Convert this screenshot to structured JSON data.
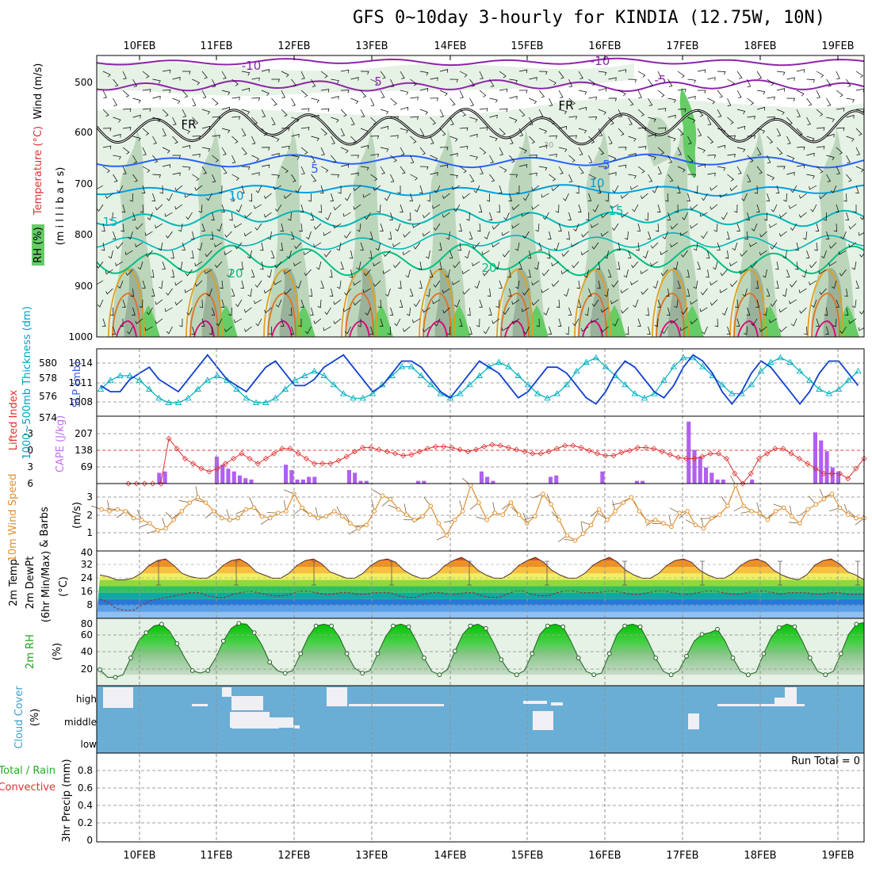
{
  "title": "GFS 0~10day 3-hourly for KINDIA (12.75W, 10N)",
  "dates": [
    "10FEB",
    "11FEB",
    "12FEB",
    "13FEB",
    "14FEB",
    "15FEB",
    "16FEB",
    "17FEB",
    "18FEB",
    "19FEB"
  ],
  "panels": {
    "upper": {
      "ylabel_rh": "RH (%)",
      "ylabel_temp": "Temperature (°C)",
      "ylabel_wind": "Wind (m/s)",
      "ylabel_units": "(m i l l i b a r s)",
      "yticks": [
        "500",
        "600",
        "700",
        "800",
        "900",
        "1000"
      ],
      "contour_labels": [
        "-10",
        "-10",
        "5",
        "-5",
        "FR",
        "FR",
        "5",
        "5",
        "10",
        "10",
        "15",
        "15",
        "20",
        "20",
        "30"
      ],
      "colors": {
        "rh_light": "#e6f2e6",
        "rh_mid": "#bcd6bc",
        "rh_dark": "#9ab29a",
        "rh_green": "#66cc66",
        "temp_m10": "#8e24aa",
        "temp_5": "#2962ff",
        "temp_10": "#00a0e0",
        "temp_15": "#00b8b8",
        "temp_20": "#00c080",
        "temp_25": "#e0a020",
        "temp_30": "#e07020",
        "temp_35": "#e0007a",
        "freezing": "#000000"
      }
    },
    "slp": {
      "ylabel_thk": "1000~500mb Thickness (dm)",
      "ylabel_slp": "SLP (mb)",
      "yticks_left": [
        "580",
        "578",
        "576",
        "574"
      ],
      "yticks_right": [
        "1014",
        "1011",
        "1008"
      ],
      "thk_color": "#00b0c0",
      "slp_color": "#1040d0"
    },
    "cape": {
      "ylabel_li": "Lifted Index",
      "ylabel_cape": "CAPE (J/kg)",
      "yticks_left": [
        "-3",
        "0",
        "3",
        "6"
      ],
      "yticks_right": [
        "207",
        "138",
        "69"
      ],
      "li_color": "#e03030",
      "cape_color": "#b060f0"
    },
    "wind": {
      "ylabel_speed": "10m Wind Speed",
      "ylabel_barbs": "& Barbs",
      "ylabel_units": "(m/s)",
      "yticks": [
        "3",
        "2",
        "1"
      ],
      "speed_color": "#e09030",
      "barb_color": "#806040"
    },
    "temp": {
      "ylabel_temp": "2m Temp",
      "ylabel_dewpt": "2m DewPt",
      "ylabel_minmax": "(6hr Min/Max)",
      "ylabel_units": "(°C)",
      "yticks": [
        "40",
        "32",
        "24",
        "16",
        "8"
      ]
    },
    "rh": {
      "ylabel": "2m RH",
      "ylabel_units": "(%)",
      "yticks": [
        "80",
        "60",
        "40",
        "20"
      ]
    },
    "cloud": {
      "ylabel": "Cloud Cover",
      "ylabel_units": "(%)",
      "levels": [
        "high",
        "middle",
        "low"
      ],
      "bg_color": "#6aaed6",
      "cloud_color": "#f0f0f4"
    },
    "precip": {
      "ylabel_total": "Total / Rain",
      "ylabel_conv": "Convective",
      "ylabel_units": "3hr Precip (mm)",
      "yticks": [
        "0.8",
        "0.6",
        "0.4",
        "0.2",
        "0"
      ],
      "run_total": "Run Total = 0"
    }
  },
  "chart_data": [
    {
      "type": "line",
      "title": "GFS 0~10day 3-hourly for KINDIA (12.75W, 10N)",
      "name": "1000~500mb Thickness / SLP",
      "x_start": "09FEB 12Z",
      "x_step_hours": 3,
      "series": [
        {
          "name": "SLP (mb)",
          "values": [
            1010,
            1009,
            1009,
            1011,
            1012,
            1013,
            1011,
            1010,
            1009,
            1011,
            1013,
            1015,
            1013,
            1011,
            1010,
            1009,
            1011,
            1013,
            1014,
            1012,
            1010,
            1010,
            1011,
            1013,
            1014,
            1015,
            1013,
            1011,
            1009,
            1010,
            1012,
            1014,
            1014,
            1013,
            1011,
            1009,
            1008,
            1010,
            1012,
            1014,
            1013,
            1012,
            1010,
            1008,
            1009,
            1011,
            1013,
            1013,
            1012,
            1010,
            1008,
            1007,
            1009,
            1012,
            1014,
            1013,
            1011,
            1009,
            1008,
            1010,
            1013,
            1015,
            1014,
            1012,
            1009,
            1007,
            1009,
            1012,
            1014,
            1013,
            1011,
            1009,
            1007,
            1009,
            1012,
            1014,
            1014,
            1012,
            1010,
            1008,
            1010,
            1012,
            1011,
            1010,
            1011
          ]
        },
        {
          "name": "1000~500mb Thickness (dm)",
          "values": [
            576.5,
            577.5,
            578,
            578,
            577.5,
            576.5,
            575.5,
            575,
            575,
            575.5,
            576.5,
            577.5,
            578,
            577.5,
            576.5,
            575.5,
            575,
            575,
            575.5,
            576.5,
            577.5,
            578,
            578.5,
            578,
            577,
            576,
            575.5,
            575.5,
            576,
            577,
            578,
            579,
            579,
            578,
            577,
            576,
            575.5,
            576,
            577,
            578,
            579,
            579.5,
            579,
            578,
            577,
            576,
            575.5,
            576,
            577,
            578.5,
            579.5,
            580,
            579,
            578,
            577,
            576,
            575.5,
            576,
            577.5,
            579,
            580,
            580,
            579,
            578,
            577,
            576,
            576,
            577,
            578.5,
            579.5,
            580,
            579.5,
            578.5,
            577.5,
            576.5,
            576,
            576.5,
            577.5,
            578.5,
            579,
            579,
            578,
            577,
            576,
            575
          ]
        }
      ]
    },
    {
      "type": "bar",
      "name": "CAPE (J/kg) / Lifted Index",
      "cape_values": [
        0,
        0,
        0,
        0,
        0,
        40,
        45,
        0,
        0,
        0,
        0,
        0,
        0,
        0,
        0,
        100,
        70,
        55,
        45,
        30,
        20,
        15,
        0,
        0,
        0,
        0,
        0,
        70,
        50,
        15,
        15,
        25,
        25,
        0,
        0,
        0,
        0,
        0,
        50,
        40,
        10,
        10,
        0,
        0,
        0,
        0,
        0,
        0,
        0,
        0,
        10,
        10,
        0,
        0,
        0,
        0,
        0,
        0,
        0,
        0,
        0,
        45,
        25,
        10,
        0,
        0,
        0,
        0,
        0,
        0,
        0,
        0,
        0,
        25,
        30,
        0,
        0,
        0,
        0,
        0,
        0,
        0,
        45,
        0,
        0,
        0,
        0,
        0,
        10,
        10,
        0,
        0,
        0,
        0,
        0,
        0,
        0,
        230,
        125,
        100,
        60,
        40,
        15,
        15,
        0,
        0,
        0,
        0,
        15,
        0,
        0,
        0,
        0,
        0,
        0,
        0,
        0,
        0,
        0,
        190,
        160,
        120,
        60,
        45
      ],
      "li_values": [
        0,
        0,
        0,
        0,
        0,
        4.5,
        3.5,
        2.5,
        2,
        1.5,
        1.2,
        1.5,
        2,
        2.5,
        3,
        2.5,
        2,
        2.5,
        3,
        3.5,
        3.5,
        3,
        2.5,
        2,
        2,
        2,
        2.3,
        2.7,
        3.2,
        3.6,
        3.6,
        3.4,
        3.2,
        3,
        2.8,
        2.9,
        3.2,
        3.5,
        3.7,
        3.7,
        3.6,
        3.4,
        3.2,
        3.4,
        3.7,
        3.9,
        3.8,
        3.6,
        3.4,
        3.2,
        3,
        3,
        3.2,
        3.5,
        3.8,
        3.8,
        3.6,
        3.3,
        3,
        2.8,
        2.8,
        3.1,
        3.3,
        3.6,
        3.6,
        3.5,
        3.2,
        2.9,
        2.6,
        2.5,
        2.5,
        2.7,
        3,
        3,
        2.5,
        1,
        0,
        1,
        2.5,
        3,
        3.5,
        3.5,
        3,
        2.5,
        2,
        1.5,
        1,
        1,
        1,
        0.5,
        1.5,
        2.5
      ]
    },
    {
      "type": "line",
      "name": "10m Wind Speed",
      "ylabel": "(m/s)",
      "values": [
        2.1,
        2.0,
        2.1,
        2.0,
        1.6,
        1.5,
        1.3,
        0.9,
        1.0,
        1.5,
        2.0,
        2.5,
        2.8,
        2.5,
        2.0,
        1.6,
        1.5,
        1.6,
        2.1,
        2.2,
        1.7,
        1.6,
        1.9,
        2.0,
        3.0,
        2.2,
        1.8,
        1.6,
        1.7,
        2.0,
        1.7,
        1.3,
        1.0,
        1.2,
        2.0,
        2.9,
        2.7,
        2.1,
        1.8,
        1.5,
        1.7,
        2.3,
        1.3,
        0.6,
        1.5,
        2.0,
        3.5,
        2.5,
        1.5,
        1.9,
        1.8,
        2.5,
        1.8,
        1.3,
        1.7,
        3.0,
        2.4,
        1.5,
        0.6,
        0.3,
        0.7,
        1.2,
        2.1,
        1.5,
        2.0,
        2.5,
        2.8,
        2.0,
        1.4,
        1.5,
        1.3,
        1.1,
        1.9,
        2.0,
        1.2,
        1.0,
        1.6,
        1.8,
        2.3,
        3.5,
        2.3,
        2.0,
        1.9,
        1.5,
        2.0,
        2.2,
        1.7,
        1.3,
        2.1,
        2.4,
        2.7,
        3.0,
        2.2,
        1.8,
        1.6,
        1.6
      ]
    },
    {
      "type": "area",
      "name": "2m Temp / 2m DewPt",
      "ylabel": "(°C)",
      "temp_values": [
        27,
        26,
        24,
        24,
        25,
        28,
        33,
        36,
        37,
        33,
        28,
        26,
        25,
        25,
        28,
        33,
        36,
        37,
        34,
        29,
        27,
        25,
        25,
        28,
        33,
        36,
        37,
        34,
        29,
        27,
        25,
        25,
        28,
        33,
        36,
        37,
        35,
        30,
        27,
        25,
        25,
        28,
        33,
        36,
        38,
        35,
        30,
        27,
        25,
        25,
        28,
        33,
        36,
        38,
        35,
        30,
        27,
        25,
        25,
        28,
        33,
        36,
        38,
        35,
        30,
        27,
        25,
        25,
        28,
        33,
        36,
        37,
        35,
        30,
        27,
        25,
        25,
        28,
        33,
        36,
        37,
        35,
        30,
        27,
        25,
        24,
        27,
        33,
        36,
        37,
        34,
        29,
        27,
        24
      ],
      "dewpt_values": [
        12,
        10,
        6,
        5,
        5,
        8,
        11,
        12,
        13,
        14,
        15,
        16,
        16,
        14,
        13,
        13,
        15,
        16,
        17,
        16,
        15,
        14,
        14,
        15,
        17,
        17,
        16,
        15,
        15,
        16,
        16,
        15,
        15,
        16,
        16,
        16,
        14,
        13,
        13,
        15,
        16,
        16,
        15,
        15,
        16,
        16,
        14,
        13,
        13,
        15,
        17,
        17,
        15,
        14,
        14,
        16,
        17,
        17,
        16,
        16,
        16,
        17,
        17,
        16,
        15,
        15,
        16,
        17,
        17,
        16,
        15,
        15,
        16,
        17,
        17,
        16,
        15,
        15,
        16,
        17,
        17,
        16,
        15,
        16,
        16,
        16,
        15,
        15,
        16,
        16,
        15,
        15,
        15
      ]
    },
    {
      "type": "area",
      "name": "2m RH",
      "ylabel": "(%)",
      "values": [
        26,
        17,
        17,
        20,
        40,
        60,
        70,
        78,
        80,
        72,
        57,
        40,
        25,
        22,
        25,
        40,
        60,
        75,
        81,
        80,
        70,
        55,
        35,
        25,
        22,
        25,
        45,
        65,
        78,
        80,
        78,
        65,
        45,
        28,
        22,
        25,
        45,
        65,
        78,
        80,
        77,
        60,
        40,
        24,
        20,
        26,
        48,
        68,
        78,
        80,
        75,
        58,
        38,
        24,
        20,
        25,
        45,
        68,
        78,
        80,
        77,
        60,
        40,
        24,
        20,
        22,
        45,
        68,
        78,
        80,
        77,
        60,
        40,
        24,
        20,
        25,
        42,
        60,
        68,
        70,
        74,
        60,
        40,
        24,
        20,
        23,
        45,
        65,
        76,
        80,
        77,
        60,
        40,
        24,
        20,
        24,
        45,
        68,
        80,
        82
      ]
    },
    {
      "type": "bar",
      "name": "3hr Precip (mm)",
      "ylim": [
        0,
        1
      ],
      "values": [],
      "annotation": "Run Total = 0"
    }
  ]
}
